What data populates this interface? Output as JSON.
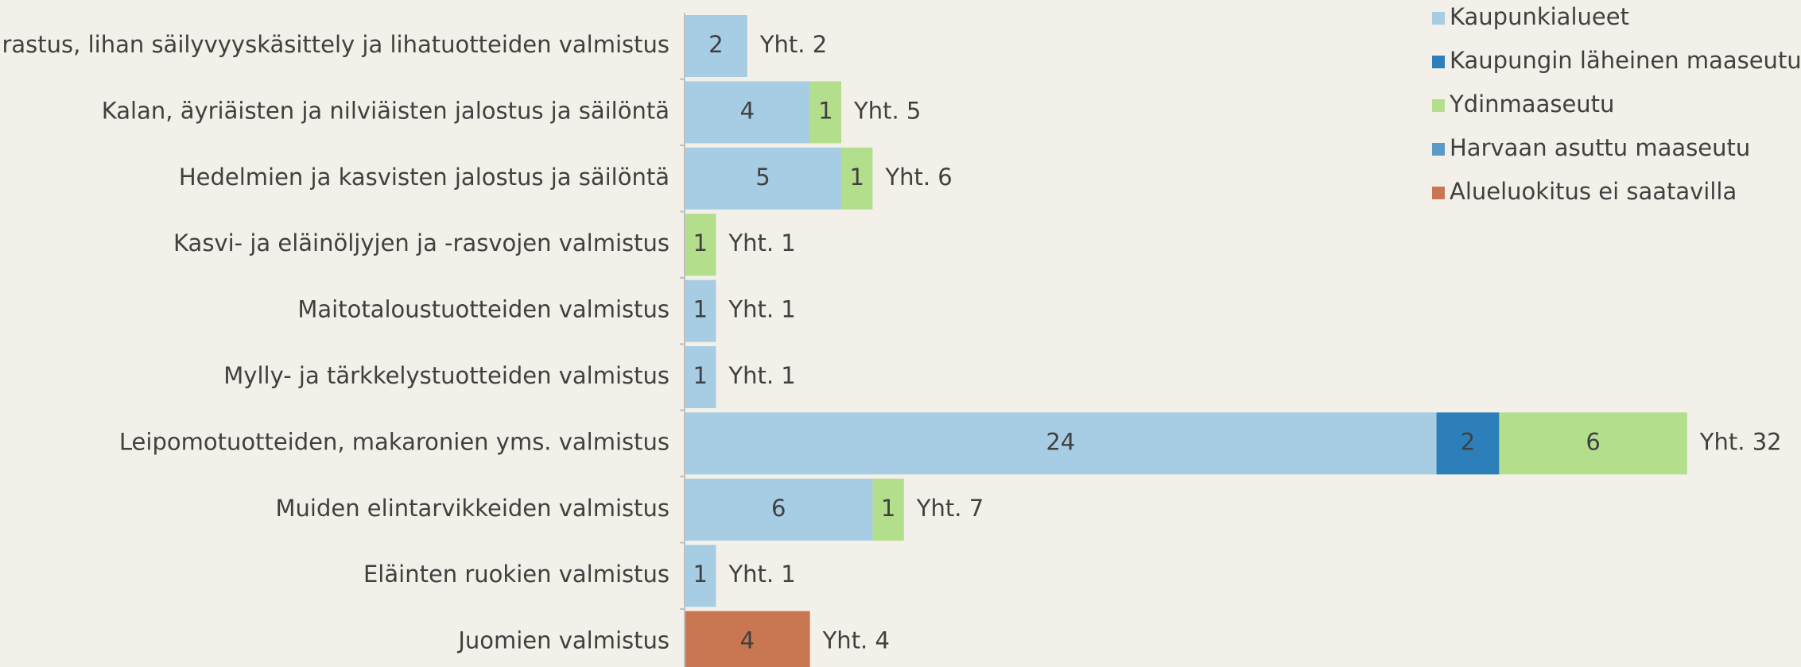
{
  "chart_data": {
    "type": "stacked_bar_horizontal",
    "categories": [
      "Teurastus, lihan säilyvyyskäsittely ja lihatuotteiden valmistus",
      "Kalan, äyriäisten ja nilviäisten jalostus ja säilöntä",
      "Hedelmien ja kasvisten jalostus ja säilöntä",
      "Kasvi- ja eläinöljyjen ja -rasvojen valmistus",
      "Maitotaloustuotteiden valmistus",
      "Mylly- ja tärkkelystuotteiden valmistus",
      "Leipomotuotteiden, makaronien yms. valmistus",
      "Muiden elintarvikkeiden valmistus",
      "Eläinten ruokien valmistus",
      "Juomien valmistus"
    ],
    "series": [
      {
        "name": "Kaupunkialueet",
        "color": "#a6cde3",
        "values": [
          2,
          4,
          5,
          null,
          1,
          1,
          24,
          6,
          1,
          null
        ]
      },
      {
        "name": "Kaupungin läheinen maaseutu",
        "color": "#2c7fb8",
        "values": [
          null,
          null,
          null,
          null,
          null,
          null,
          2,
          null,
          null,
          null
        ]
      },
      {
        "name": "Ydinmaaseutu",
        "color": "#b3de8c",
        "values": [
          null,
          1,
          1,
          1,
          null,
          null,
          6,
          1,
          null,
          null
        ]
      },
      {
        "name": "Harvaan asuttu maaseutu",
        "color": "#5b9ac6",
        "values": [
          null,
          null,
          null,
          null,
          null,
          null,
          null,
          null,
          null,
          null
        ]
      },
      {
        "name": "Alueluokitus ei saatavilla",
        "color": "#c87752",
        "values": [
          null,
          null,
          null,
          null,
          null,
          null,
          null,
          null,
          null,
          4
        ]
      }
    ],
    "total_labels": [
      "Yht. 2",
      "Yht. 5",
      "Yht. 6",
      "Yht. 1",
      "Yht. 1",
      "Yht. 1",
      "Yht. 32",
      "Yht. 7",
      "Yht. 1",
      "Yht. 4"
    ],
    "legend": "top-right"
  }
}
